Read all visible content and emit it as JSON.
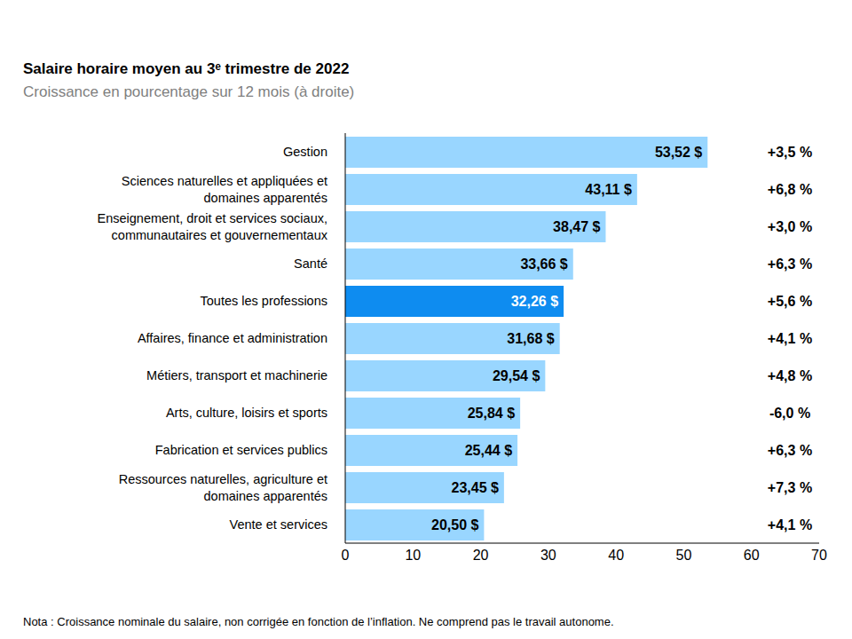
{
  "chart_data": {
    "type": "bar",
    "orientation": "horizontal",
    "title": "Salaire horaire moyen au 3ᵉ trimestre de 2022",
    "subtitle": "Croissance en pourcentage sur 12 mois (à droite)",
    "note": "Nota : Croissance nominale du salaire, non corrigée en fonction de l’inflation. Ne comprend pas le travail autonome.",
    "categories": [
      "Gestion",
      "Sciences naturelles et appliquées et domaines apparentés",
      "Enseignement, droit et services sociaux, communautaires et gouvernementaux",
      "Santé",
      "Toutes les professions",
      "Affaires, finance et administration",
      "Métiers, transport et machinerie",
      "Arts, culture, loisirs et sports",
      "Fabrication et services publics",
      "Ressources naturelles, agriculture et domaines apparentés",
      "Vente et services"
    ],
    "values": [
      53.52,
      43.11,
      38.47,
      33.66,
      32.26,
      31.68,
      29.54,
      25.84,
      25.44,
      23.45,
      20.5
    ],
    "value_labels": [
      "53,52 $",
      "43,11 $",
      "38,47 $",
      "33,66 $",
      "32,26 $",
      "31,68 $",
      "29,54 $",
      "25,84 $",
      "25,44 $",
      "23,45 $",
      "20,50 $"
    ],
    "growth": [
      3.5,
      6.8,
      3.0,
      6.3,
      5.6,
      4.1,
      4.8,
      -6.0,
      6.3,
      7.3,
      4.1
    ],
    "growth_labels": [
      "+3,5 %",
      "+6,8 %",
      "+3,0 %",
      "+6,3 %",
      "+5,6 %",
      "+4,1 %",
      "+4,8 %",
      "-6,0 %",
      "+6,3 %",
      "+7,3 %",
      "+4,1 %"
    ],
    "colors": [
      "#99d6ff",
      "#99d6ff",
      "#99d6ff",
      "#99d6ff",
      "#0e8cf0",
      "#99d6ff",
      "#99d6ff",
      "#99d6ff",
      "#99d6ff",
      "#99d6ff",
      "#99d6ff"
    ],
    "xlim": [
      0,
      70
    ],
    "xticks": [
      0,
      10,
      20,
      30,
      40,
      50,
      60,
      70
    ],
    "grid": false,
    "data_labels": true
  }
}
